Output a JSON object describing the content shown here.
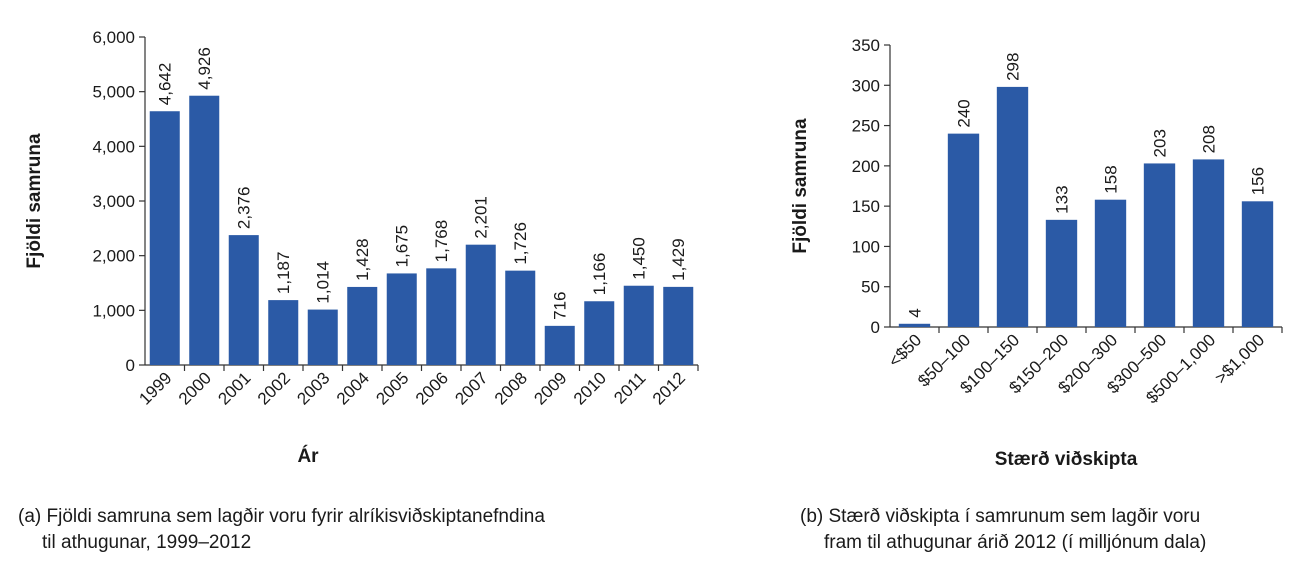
{
  "chart_data": [
    {
      "type": "bar",
      "categories": [
        "1999",
        "2000",
        "2001",
        "2002",
        "2003",
        "2004",
        "2005",
        "2006",
        "2007",
        "2008",
        "2009",
        "2010",
        "2011",
        "2012"
      ],
      "values": [
        4642,
        4926,
        2376,
        1187,
        1014,
        1428,
        1675,
        1768,
        2201,
        1726,
        716,
        1166,
        1450,
        1429
      ],
      "value_labels": [
        "4,642",
        "4,926",
        "2,376",
        "1,187",
        "1,014",
        "1,428",
        "1,675",
        "1,768",
        "2,201",
        "1,726",
        "716",
        "1,166",
        "1,450",
        "1,429"
      ],
      "xlabel": "Ár",
      "ylabel": "Fjöldi samruna",
      "ylim": [
        0,
        6000
      ],
      "yticks": [
        0,
        1000,
        2000,
        3000,
        4000,
        5000,
        6000
      ],
      "ytick_labels": [
        "0",
        "1,000",
        "2,000",
        "3,000",
        "4,000",
        "5,000",
        "6,000"
      ],
      "bar_color": "#2b5aa6",
      "grid": false,
      "caption_line1": "(a) Fjöldi samruna sem lagðir voru fyrir alríkisviðskiptanefndina",
      "caption_line2": "til athugunar, 1999–2012"
    },
    {
      "type": "bar",
      "categories": [
        "<$50",
        "$50–100",
        "$100–150",
        "$150–200",
        "$200–300",
        "$300–500",
        "$500–1,000",
        ">$1,000"
      ],
      "values": [
        4,
        240,
        298,
        133,
        158,
        203,
        208,
        156
      ],
      "value_labels": [
        "4",
        "240",
        "298",
        "133",
        "158",
        "203",
        "208",
        "156"
      ],
      "xlabel": "Stærð viðskipta",
      "ylabel": "Fjöldi samruna",
      "ylim": [
        0,
        350
      ],
      "yticks": [
        0,
        50,
        100,
        150,
        200,
        250,
        300,
        350
      ],
      "ytick_labels": [
        "0",
        "50",
        "100",
        "150",
        "200",
        "250",
        "300",
        "350"
      ],
      "bar_color": "#2b5aa6",
      "grid": false,
      "caption_line1": "(b) Stærð viðskipta í samrunum sem lagðir voru",
      "caption_line2": "fram til athugunar árið 2012 (í milljónum dala)"
    }
  ]
}
